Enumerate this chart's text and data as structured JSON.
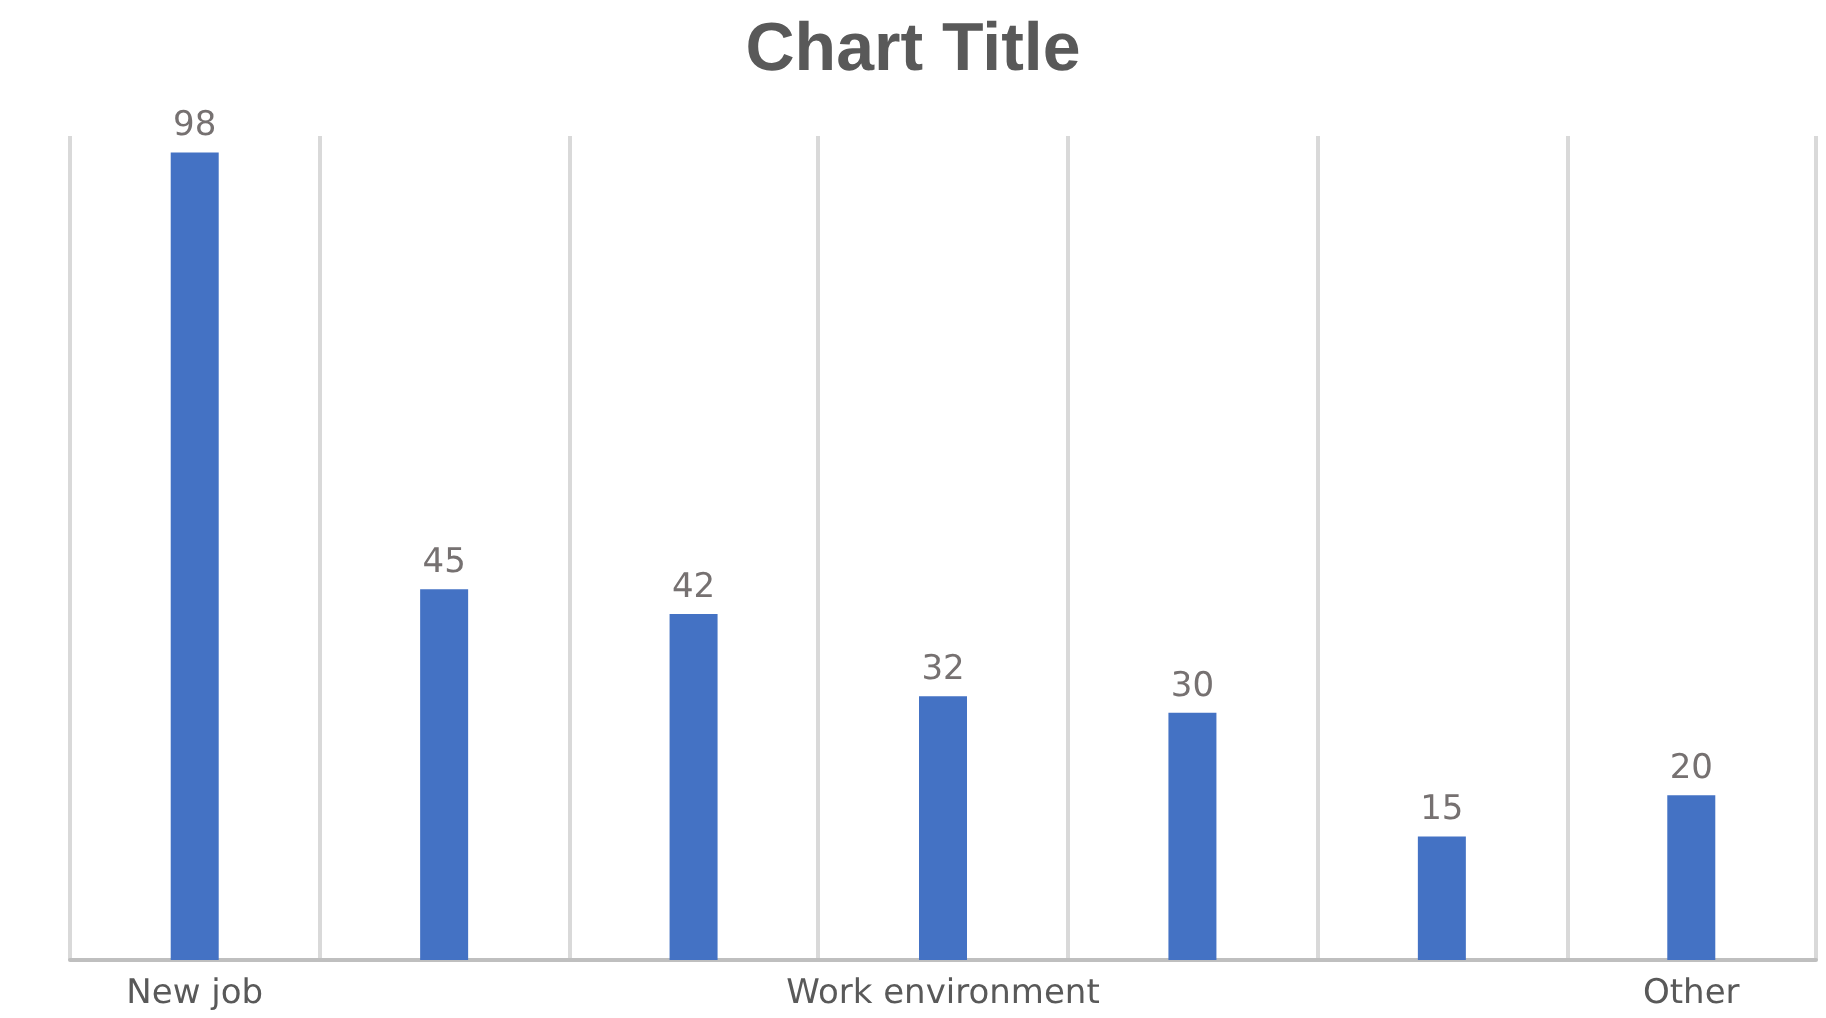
{
  "chart_data": {
    "type": "bar",
    "title": "Chart Title",
    "categories": [
      "New job",
      null,
      null,
      "Work environment",
      null,
      null,
      "Other"
    ],
    "values": [
      98,
      45,
      42,
      32,
      30,
      15,
      20
    ],
    "color": "#4472c4",
    "data_labels": true,
    "grid": "x"
  }
}
